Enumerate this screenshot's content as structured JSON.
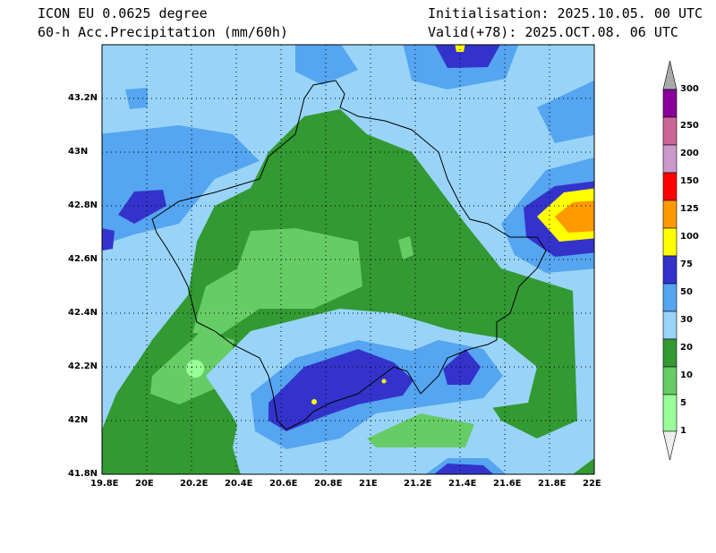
{
  "header": {
    "model": "ICON EU 0.0625 degree",
    "variable": "60-h Acc.Precipitation (mm/60h)",
    "init": "Initialisation: 2025.10.05. 00 UTC",
    "valid": "Valid(+78): 2025.OCT.08. 06 UTC"
  },
  "axes": {
    "lon_labels": [
      "19.8E",
      "20E",
      "20.2E",
      "20.4E",
      "20.6E",
      "20.8E",
      "21E",
      "21.2E",
      "21.4E",
      "21.6E",
      "21.8E",
      "22E"
    ],
    "lat_labels": [
      "43.2N",
      "43N",
      "42.8N",
      "42.6N",
      "42.4N",
      "42.2N",
      "42N",
      "41.8N"
    ]
  },
  "legend": {
    "levels": [
      "1",
      "5",
      "10",
      "20",
      "30",
      "50",
      "75",
      "100",
      "125",
      "150",
      "200",
      "250",
      "300"
    ],
    "colors": [
      "#99ff99",
      "#66cc66",
      "#339933",
      "#99d4f8",
      "#55a5f0",
      "#3333cc",
      "#ffff00",
      "#ff9900",
      "#ff0000",
      "#cc99cc",
      "#cc6699",
      "#880099"
    ]
  }
}
